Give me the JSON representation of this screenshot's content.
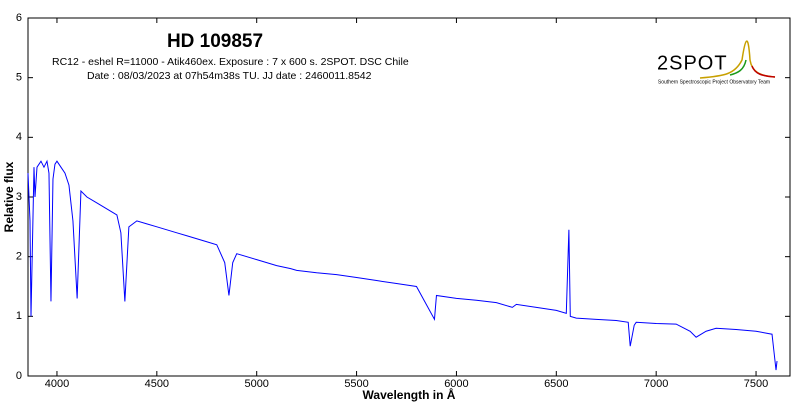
{
  "chart_data": {
    "type": "line",
    "title": "HD 109857",
    "subtitle": [
      "RC12 - eshel R=11000 - Atik460ex. Exposure : 7 x 600 s. 2SPOT. DSC Chile",
      "Date : 08/03/2023 at 07h54m38s TU. JJ date : 2460011.8542"
    ],
    "logo": {
      "name": "2SPOT",
      "caption": "Southern Spectroscopic Project Observatory Team"
    },
    "x_label": "Wavelength in Å",
    "y_label": "Relative flux",
    "x": [
      3855,
      3865,
      3870,
      3885,
      3890,
      3900,
      3920,
      3935,
      3950,
      3960,
      3970,
      3980,
      3990,
      4000,
      4020,
      4040,
      4060,
      4080,
      4101,
      4120,
      4150,
      4200,
      4250,
      4300,
      4320,
      4340,
      4360,
      4400,
      4450,
      4500,
      4550,
      4600,
      4650,
      4700,
      4750,
      4800,
      4840,
      4861,
      4880,
      4900,
      5000,
      5100,
      5170,
      5200,
      5300,
      5400,
      5500,
      5600,
      5700,
      5800,
      5890,
      5900,
      6000,
      6100,
      6200,
      6280,
      6300,
      6400,
      6500,
      6550,
      6563,
      6570,
      6600,
      6700,
      6800,
      6860,
      6870,
      6890,
      6900,
      7000,
      7100,
      7170,
      7200,
      7250,
      7300,
      7400,
      7500,
      7580,
      7590,
      7600,
      7605
    ],
    "series": [
      {
        "name": "HD 109857",
        "color": "#0000ff",
        "values": [
          3.4,
          2.6,
          1.0,
          3.5,
          3.0,
          3.5,
          3.6,
          3.5,
          3.6,
          3.4,
          1.25,
          3.3,
          3.55,
          3.6,
          3.5,
          3.4,
          3.2,
          2.6,
          1.3,
          3.1,
          3.0,
          2.9,
          2.8,
          2.7,
          2.4,
          1.25,
          2.5,
          2.6,
          2.55,
          2.5,
          2.45,
          2.4,
          2.35,
          2.3,
          2.25,
          2.2,
          1.9,
          1.35,
          1.9,
          2.05,
          1.95,
          1.85,
          1.8,
          1.77,
          1.73,
          1.7,
          1.65,
          1.6,
          1.55,
          1.5,
          0.95,
          1.35,
          1.3,
          1.27,
          1.23,
          1.15,
          1.2,
          1.15,
          1.1,
          1.05,
          2.45,
          1.0,
          0.97,
          0.95,
          0.93,
          0.9,
          0.5,
          0.85,
          0.9,
          0.88,
          0.87,
          0.75,
          0.65,
          0.75,
          0.8,
          0.78,
          0.75,
          0.7,
          0.4,
          0.1,
          0.25
        ]
      }
    ],
    "xlim": [
      3855,
      7670
    ],
    "ylim": [
      0,
      6
    ],
    "xticks": [
      4000,
      4500,
      5000,
      5500,
      6000,
      6500,
      7000,
      7500
    ],
    "yticks": [
      0,
      1,
      2,
      3,
      4,
      5,
      6
    ],
    "grid": false
  }
}
